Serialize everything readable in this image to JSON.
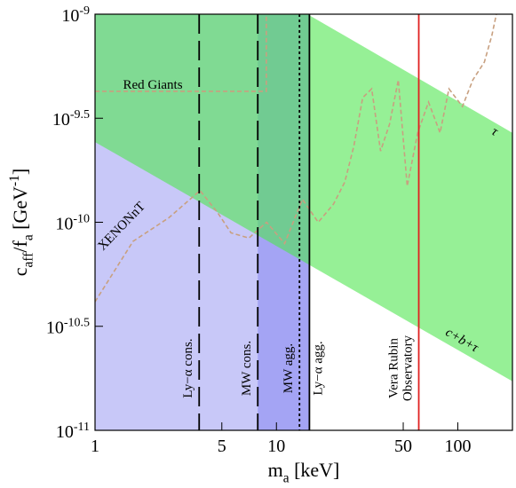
{
  "chart_data": {
    "type": "line",
    "x_label": "m_{a} [keV]",
    "y_label": "c_{aff}/f_{a} [GeV^{-1}]",
    "xscale": "log",
    "yscale": "log",
    "xlim": [
      1,
      200
    ],
    "ylim": [
      1e-11,
      1e-09
    ],
    "xticks": [
      1,
      5,
      10,
      50,
      100
    ],
    "yticks": [
      {
        "value": 1e-09,
        "label": "10^{-9}"
      },
      {
        "value": 3.1623e-10,
        "label": "10^{-9.5}"
      },
      {
        "value": 1e-10,
        "label": "10^{-10}"
      },
      {
        "value": 3.1623e-11,
        "label": "10^{-10.5}"
      },
      {
        "value": 1e-11,
        "label": "10^{-11}"
      }
    ],
    "regions": [
      {
        "x": [
          1,
          15.2
        ],
        "color": "#c8c8f8"
      },
      {
        "x": [
          7.89,
          15.2
        ],
        "color": "#a4a4f4"
      }
    ],
    "band": {
      "x": [
        1,
        200
      ],
      "upper": [
        3.9e-09,
        2.69e-10
      ],
      "lower": [
        2.43e-10,
        1.72e-11
      ],
      "color": "#50e650",
      "upper_label": "τ",
      "lower_label": "c+b+τ"
    },
    "vlines": [
      {
        "label": "Ly−α cons.",
        "x": 3.75,
        "color": "#000000",
        "style": "long-dash",
        "label_side": "left"
      },
      {
        "label": "MW cons.",
        "x": 7.89,
        "color": "#000000",
        "style": "long-dash",
        "label_side": "left"
      },
      {
        "label": "MW agg.",
        "x": 13.4,
        "color": "#000000",
        "style": "dotted",
        "label_side": "left"
      },
      {
        "label": "Ly−α agg.",
        "x": 15.2,
        "color": "#000000",
        "style": "solid",
        "label_side": "right"
      },
      {
        "label": [
          "Vera Rubin",
          "Observatory"
        ],
        "x": 60.9,
        "color": "#e02020",
        "style": "solid",
        "label_side": "left"
      }
    ],
    "series": [
      {
        "name": "Red Giants",
        "color": "#c8a080",
        "x": [
          1,
          8.8,
          8.8
        ],
        "values": [
          4.26e-10,
          4.26e-10,
          1e-09
        ]
      },
      {
        "name": "XENONnT",
        "color": "#c8a080",
        "x": [
          1,
          1.62,
          2.55,
          3.79,
          4.75,
          5.62,
          7.05,
          8.83,
          11.1,
          13.9,
          17.0,
          20.6,
          23.8,
          26.7,
          29.9,
          33.5,
          37.5,
          42.0,
          47.0,
          52.6,
          60.1,
          68.9,
          79.8,
          89.3,
          106,
          121,
          140,
          154,
          163
        ],
        "values": [
          4.15e-11,
          8.1e-11,
          1.05e-10,
          1.42e-10,
          1.11e-10,
          8.9e-11,
          8.4e-11,
          1e-10,
          7.9e-11,
          1.29e-10,
          1e-10,
          1.22e-10,
          1.56e-10,
          2.32e-10,
          3.97e-10,
          4.38e-10,
          2.2e-10,
          2.96e-10,
          4.83e-10,
          1.49e-10,
          2.69e-10,
          3.78e-10,
          2.69e-10,
          4.38e-10,
          3.6e-10,
          4.83e-10,
          5.89e-10,
          7.9e-10,
          1e-09
        ]
      }
    ]
  }
}
